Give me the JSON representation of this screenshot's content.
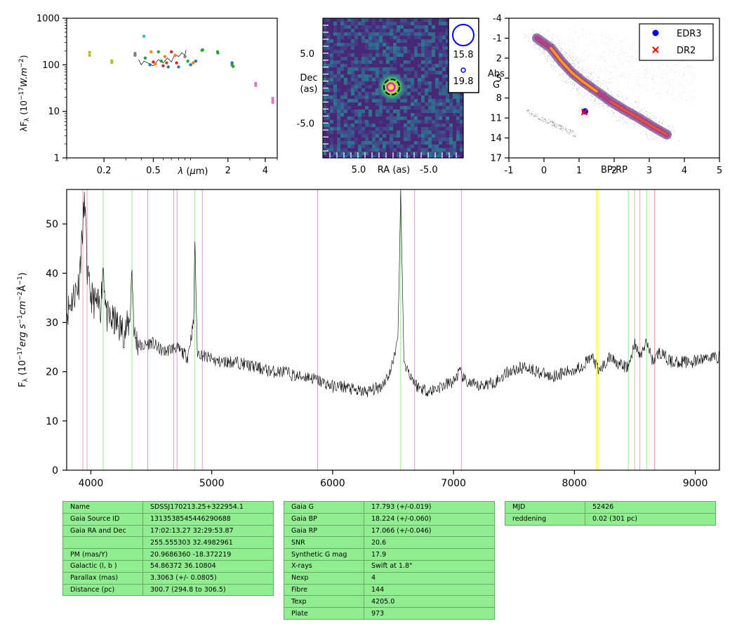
{
  "chart_data": [
    {
      "type": "scatter",
      "panel": "sed",
      "ylabel": "λF_λ (10^-17 W.m^-2)",
      "xlabel": "λ (μm)",
      "x_scale": "log",
      "y_scale": "log",
      "xlim": [
        0.1,
        5.0
      ],
      "ylim": [
        1,
        1000
      ],
      "xticks": [
        "0.2",
        "0.5",
        "2",
        "4"
      ],
      "yticks": [
        "1",
        "10",
        "100",
        "1000"
      ],
      "points": [
        {
          "x": 0.153,
          "y": 185,
          "color": "#bcbd22"
        },
        {
          "x": 0.153,
          "y": 160,
          "color": "#bcbd22"
        },
        {
          "x": 0.231,
          "y": 122,
          "color": "#bcbd22"
        },
        {
          "x": 0.231,
          "y": 112,
          "color": "#bcbd22"
        },
        {
          "x": 0.356,
          "y": 175,
          "color": "#7f7f7f"
        },
        {
          "x": 0.356,
          "y": 160,
          "color": "#7f7f7f"
        },
        {
          "x": 0.42,
          "y": 410,
          "color": "#17becf"
        },
        {
          "x": 0.43,
          "y": 140,
          "color": "#2ca02c"
        },
        {
          "x": 0.47,
          "y": 100,
          "color": "#1f77b4"
        },
        {
          "x": 0.48,
          "y": 190,
          "color": "#ff7f0e"
        },
        {
          "x": 0.5,
          "y": 115,
          "color": "#d62728"
        },
        {
          "x": 0.52,
          "y": 105,
          "color": "#ff7f0e"
        },
        {
          "x": 0.55,
          "y": 190,
          "color": "#2ca02c"
        },
        {
          "x": 0.58,
          "y": 120,
          "color": "#2ca02c"
        },
        {
          "x": 0.6,
          "y": 95,
          "color": "#d62728"
        },
        {
          "x": 0.62,
          "y": 150,
          "color": "#ff7f0e"
        },
        {
          "x": 0.64,
          "y": 110,
          "color": "#8c564b"
        },
        {
          "x": 0.66,
          "y": 90,
          "color": "#1f77b4"
        },
        {
          "x": 0.7,
          "y": 190,
          "color": "#d62728"
        },
        {
          "x": 0.75,
          "y": 160,
          "color": "#ff7f0e"
        },
        {
          "x": 0.77,
          "y": 110,
          "color": "#d62728"
        },
        {
          "x": 0.8,
          "y": 90,
          "color": "#1f77b4"
        },
        {
          "x": 0.9,
          "y": 150,
          "color": "#7f7f7f"
        },
        {
          "x": 0.95,
          "y": 120,
          "color": "#2ca02c"
        },
        {
          "x": 1.0,
          "y": 100,
          "color": "#1f77b4"
        },
        {
          "x": 1.05,
          "y": 110,
          "color": "#ff7f0e"
        },
        {
          "x": 1.1,
          "y": 120,
          "color": "#1f77b4"
        },
        {
          "x": 1.235,
          "y": 205,
          "color": "#2ca02c"
        },
        {
          "x": 1.25,
          "y": 210,
          "color": "#2ca02c"
        },
        {
          "x": 1.65,
          "y": 190,
          "color": "#2ca02c"
        },
        {
          "x": 1.66,
          "y": 180,
          "color": "#2ca02c"
        },
        {
          "x": 2.16,
          "y": 110,
          "color": "#1f77b4"
        },
        {
          "x": 2.16,
          "y": 100,
          "color": "#2ca02c"
        },
        {
          "x": 2.2,
          "y": 92,
          "color": "#2ca02c"
        },
        {
          "x": 3.35,
          "y": 40,
          "color": "#e377c2"
        },
        {
          "x": 3.35,
          "y": 36,
          "color": "#e377c2"
        },
        {
          "x": 4.6,
          "y": 19,
          "color": "#e377c2"
        },
        {
          "x": 4.6,
          "y": 17,
          "color": "#e377c2"
        },
        {
          "x": 4.6,
          "y": 15.5,
          "color": "#e377c2"
        }
      ]
    },
    {
      "type": "heatmap",
      "panel": "image",
      "xlabel": "RA (as)",
      "ylabel": "Dec\n(as)",
      "xlim": [
        10,
        -10
      ],
      "ylim": [
        -10,
        10
      ],
      "xticks": [
        "5.0",
        "-5.0"
      ],
      "yticks": [
        "5.0",
        "-5.0"
      ],
      "scale_labels": [
        "15.8",
        "19.8"
      ]
    },
    {
      "type": "scatter",
      "panel": "hr",
      "xlabel": "BP-RP",
      "ylabel": "Abs\nG",
      "xlim": [
        -1,
        5
      ],
      "ylim": [
        17,
        -4
      ],
      "xticks": [
        "-1",
        "0",
        "1",
        "2",
        "3",
        "4",
        "5"
      ],
      "yticks": [
        "-4",
        "-1",
        "2",
        "5",
        "8",
        "11",
        "14",
        "17"
      ],
      "legend": [
        "EDR3",
        "DR2"
      ],
      "series": [
        {
          "name": "EDR3",
          "x": [
            1.17
          ],
          "y": [
            10.0
          ],
          "color": "#0000ff",
          "marker": "circle"
        },
        {
          "name": "DR2",
          "x": [
            1.15
          ],
          "y": [
            10.1
          ],
          "color": "#ff0000",
          "marker": "x"
        }
      ]
    },
    {
      "type": "line",
      "panel": "spectrum",
      "ylabel": "F_λ (10^-17 erg s^-1 cm^-2 Å^-1)",
      "xlim": [
        3800,
        9200
      ],
      "ylim": [
        0,
        57
      ],
      "xticks": [
        "4000",
        "5000",
        "6000",
        "7000",
        "8000",
        "9000"
      ],
      "yticks": [
        "0",
        "10",
        "20",
        "30",
        "40",
        "50"
      ],
      "x": [
        3800,
        3850,
        3900,
        3935,
        3950,
        3970,
        3990,
        4030,
        4080,
        4102,
        4130,
        4200,
        4280,
        4320,
        4340,
        4360,
        4420,
        4500,
        4600,
        4700,
        4800,
        4850,
        4861,
        4880,
        4950,
        5050,
        5200,
        5350,
        5500,
        5600,
        5700,
        5800,
        5900,
        6000,
        6100,
        6200,
        6300,
        6400,
        6480,
        6540,
        6555,
        6563,
        6572,
        6590,
        6650,
        6700,
        6800,
        6900,
        7000,
        7050,
        7100,
        7200,
        7350,
        7450,
        7600,
        7800,
        7950,
        8050,
        8150,
        8200,
        8300,
        8400,
        8450,
        8500,
        8540,
        8600,
        8650,
        8700,
        8800,
        8900,
        9000,
        9100,
        9200
      ],
      "y": [
        32,
        35,
        38,
        50,
        55,
        40,
        36,
        34,
        33,
        42,
        31,
        30,
        28,
        30,
        41,
        27,
        25,
        26,
        24,
        25,
        23,
        30,
        47,
        24,
        23,
        22,
        22,
        21,
        20,
        20,
        19,
        19,
        18,
        17,
        17,
        16,
        16,
        17,
        20,
        27,
        45,
        57,
        45,
        22,
        19,
        17,
        16,
        17,
        18,
        20,
        18,
        17,
        18,
        20,
        21,
        19,
        20,
        21,
        23,
        20,
        23,
        21,
        21,
        26,
        23,
        26,
        22,
        24,
        22,
        22,
        22,
        23,
        23
      ],
      "lines": [
        {
          "x": 3934,
          "color": "#ff9bb5"
        },
        {
          "x": 3969,
          "color": "#ff9bb5"
        },
        {
          "x": 4102,
          "color": "#90ee90"
        },
        {
          "x": 4340,
          "color": "#90ee90"
        },
        {
          "x": 4471,
          "color": "#dd99dd"
        },
        {
          "x": 4686,
          "color": "#dd99dd"
        },
        {
          "x": 4713,
          "color": "#dd99dd"
        },
        {
          "x": 4861,
          "color": "#90ee90"
        },
        {
          "x": 4922,
          "color": "#dd99dd"
        },
        {
          "x": 5876,
          "color": "#dd99dd"
        },
        {
          "x": 6563,
          "color": "#90ee90"
        },
        {
          "x": 6678,
          "color": "#dd99dd"
        },
        {
          "x": 7065,
          "color": "#dd99dd"
        },
        {
          "x": 8183,
          "color": "#ffff00"
        },
        {
          "x": 8195,
          "color": "#ffff00"
        },
        {
          "x": 8446,
          "color": "#90ee90"
        },
        {
          "x": 8498,
          "color": "#c8c8a0"
        },
        {
          "x": 8542,
          "color": "#ff9bb5"
        },
        {
          "x": 8598,
          "color": "#90ee90"
        },
        {
          "x": 8662,
          "color": "#c8c8a0"
        },
        {
          "x": 8665,
          "color": "#ff9bb5"
        }
      ]
    }
  ],
  "tables": {
    "left": [
      [
        "Name",
        "SDSSJ170213.25+322954.1"
      ],
      [
        "Gaia Source ID",
        "1313538545446290688"
      ],
      [
        "Gaia RA and Dec",
        "17:02:13.27    32:29:53.87"
      ],
      [
        "",
        "255.555303    32.4982961"
      ],
      [
        "PM (mas/Y)",
        "20.9686360    -18.372219"
      ],
      [
        "Galactic (l, b )",
        "54.86372    36.10804"
      ],
      [
        "Parallax (mas)",
        "3.3063 (+/- 0.0805)"
      ],
      [
        "Distance (pc)",
        "300.7 (294.8 to 306.5)"
      ]
    ],
    "middle": [
      [
        "Gaia G",
        "17.793 (+/-0.019)"
      ],
      [
        "Gaia BP",
        "18.224 (+/-0.060)"
      ],
      [
        "Gaia RP",
        "17.066 (+/-0.046)"
      ],
      [
        "SNR",
        "20.6"
      ],
      [
        "Synthetic G mag",
        "17.9"
      ],
      [
        "X-rays",
        "Swift at 1.8\""
      ],
      [
        "Nexp",
        "4"
      ],
      [
        "Fibre",
        "144"
      ],
      [
        "Texp",
        "4205.0"
      ],
      [
        "Plate",
        "973"
      ]
    ],
    "right": [
      [
        "MJD",
        "52426"
      ],
      [
        "reddening",
        "0.02 (301 pc)"
      ]
    ]
  }
}
